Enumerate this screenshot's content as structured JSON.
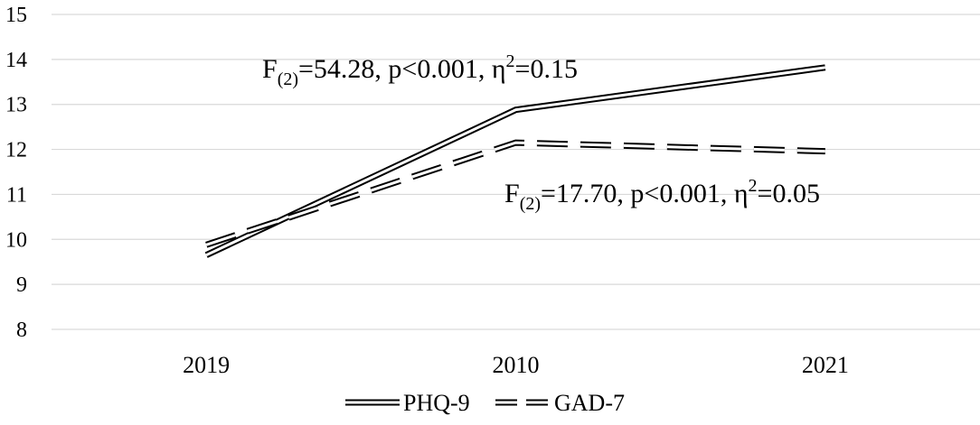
{
  "chart_data": {
    "type": "line",
    "categories": [
      "2019",
      "2010",
      "2021"
    ],
    "yticks": [
      "15",
      "14",
      "13",
      "12",
      "11",
      "10",
      "9",
      "8"
    ],
    "ylim": [
      8,
      15
    ],
    "grid": "horizontal",
    "legend_position": "bottom",
    "series": [
      {
        "name": "PHQ-9",
        "values": [
          9.65,
          12.88,
          13.82
        ],
        "style": "double-solid"
      },
      {
        "name": "GAD-7",
        "values": [
          9.88,
          12.15,
          11.96
        ],
        "style": "double-dashed"
      }
    ],
    "annotations": [
      {
        "series": "PHQ-9",
        "text_f": "F",
        "text_sub": "(2)",
        "text_mid": "=54.28, p<0.001, η",
        "text_sup": "2",
        "text_end": "=0.15"
      },
      {
        "series": "GAD-7",
        "text_f": "F",
        "text_sub": "(2)",
        "text_mid": "=17.70, p<0.001, η",
        "text_sup": "2",
        "text_end": "=0.05"
      }
    ],
    "colors": {
      "line": "#000000",
      "grid": "#d9d9d9"
    }
  }
}
